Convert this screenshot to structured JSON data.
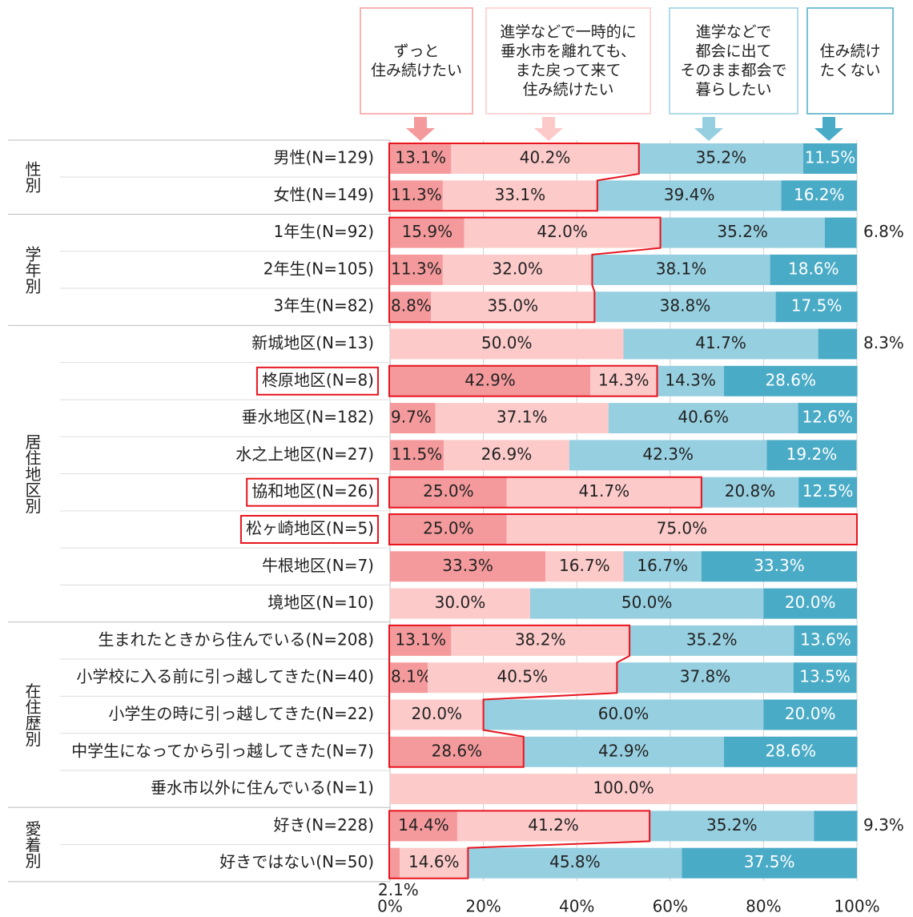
{
  "chart_data": {
    "type": "stacked-bar-horizontal",
    "xlim": [
      0,
      100
    ],
    "xticks": [
      {
        "value": 0,
        "label": "0%"
      },
      {
        "value": 20,
        "label": "20%"
      },
      {
        "value": 40,
        "label": "40%"
      },
      {
        "value": 60,
        "label": "60%"
      },
      {
        "value": 80,
        "label": "80%"
      },
      {
        "value": 100,
        "label": "100%"
      }
    ],
    "grid": true,
    "groups": [
      {
        "name": "性別",
        "categories": [
          "男性(N=129)",
          "女性(N=149)"
        ]
      },
      {
        "name": "学年別",
        "categories": [
          "1年生(N=92)",
          "2年生(N=105)",
          "3年生(N=82)"
        ]
      },
      {
        "name": "居住地区別",
        "categories": [
          "新城地区(N=13)",
          "柊原地区(N=8)",
          "垂水地区(N=182)",
          "水之上地区(N=27)",
          "協和地区(N=26)",
          "松ヶ崎地区(N=5)",
          "牛根地区(N=7)",
          "境地区(N=10)"
        ]
      },
      {
        "name": "在住歴別",
        "categories": [
          "生まれたときから住んでいる(N=208)",
          "小学校に入る前に引っ越してきた(N=40)",
          "小学生の時に引っ越してきた(N=22)",
          "中学生になってから引っ越してきた(N=7)",
          "垂水市以外に住んでいる(N=1)"
        ]
      },
      {
        "name": "愛着別",
        "categories": [
          "好き(N=228)",
          "好きではない(N=50)"
        ]
      }
    ],
    "series": [
      {
        "name": "ずっと\n住み続けたい",
        "color": "#f59a9c",
        "values": [
          13.1,
          11.3,
          15.9,
          11.3,
          8.8,
          null,
          42.9,
          9.7,
          11.5,
          25.0,
          25.0,
          33.3,
          null,
          13.1,
          8.1,
          null,
          28.6,
          null,
          14.4,
          2.1
        ],
        "value_labels": [
          "13.1%",
          "11.3%",
          "15.9%",
          "11.3%",
          "8.8%",
          null,
          "42.9%",
          "9.7%",
          "11.5%",
          "25.0%",
          "25.0%",
          "33.3%",
          null,
          "13.1%",
          "8.1%",
          null,
          "28.6%",
          null,
          "14.4%",
          "2.1%"
        ]
      },
      {
        "name": "進学などで一時的に\n垂水市を離れても、\nまた戻って来て\n住み続けたい",
        "color": "#fdcaca",
        "values": [
          40.2,
          33.1,
          42.0,
          32.0,
          35.0,
          50.0,
          14.3,
          37.1,
          26.9,
          41.7,
          75.0,
          16.7,
          30.0,
          38.2,
          40.5,
          20.0,
          null,
          100.0,
          41.2,
          14.6
        ],
        "value_labels": [
          "40.2%",
          "33.1%",
          "42.0%",
          "32.0%",
          "35.0%",
          "50.0%",
          "14.3%",
          "37.1%",
          "26.9%",
          "41.7%",
          "75.0%",
          "16.7%",
          "30.0%",
          "38.2%",
          "40.5%",
          "20.0%",
          null,
          "100.0%",
          "41.2%",
          "14.6%"
        ]
      },
      {
        "name": "進学などで\n都会に出て\nそのまま都会で\n暮らしたい",
        "color": "#96cfe0",
        "values": [
          35.2,
          39.4,
          35.2,
          38.1,
          38.8,
          41.7,
          14.3,
          40.6,
          42.3,
          20.8,
          null,
          16.7,
          50.0,
          35.2,
          37.8,
          60.0,
          42.9,
          null,
          35.2,
          45.8
        ],
        "value_labels": [
          "35.2%",
          "39.4%",
          "35.2%",
          "38.1%",
          "38.8%",
          "41.7%",
          "14.3%",
          "40.6%",
          "42.3%",
          "20.8%",
          null,
          "16.7%",
          "50.0%",
          "35.2%",
          "37.8%",
          "60.0%",
          "42.9%",
          null,
          "35.2%",
          "45.8%"
        ]
      },
      {
        "name": "住み続け\nたくない",
        "color": "#4aabc7",
        "values": [
          11.5,
          16.2,
          6.8,
          18.6,
          17.5,
          8.3,
          28.6,
          12.6,
          19.2,
          12.5,
          null,
          33.3,
          20.0,
          13.6,
          13.5,
          20.0,
          28.6,
          null,
          9.3,
          37.5
        ],
        "value_labels": [
          "11.5%",
          "16.2%",
          "6.8%",
          "18.6%",
          "17.5%",
          "8.3%",
          "28.6%",
          "12.6%",
          "19.2%",
          "12.5%",
          null,
          "33.3%",
          "20.0%",
          "13.6%",
          "13.5%",
          "20.0%",
          "28.6%",
          null,
          "9.3%",
          "37.5%"
        ]
      }
    ]
  }
}
